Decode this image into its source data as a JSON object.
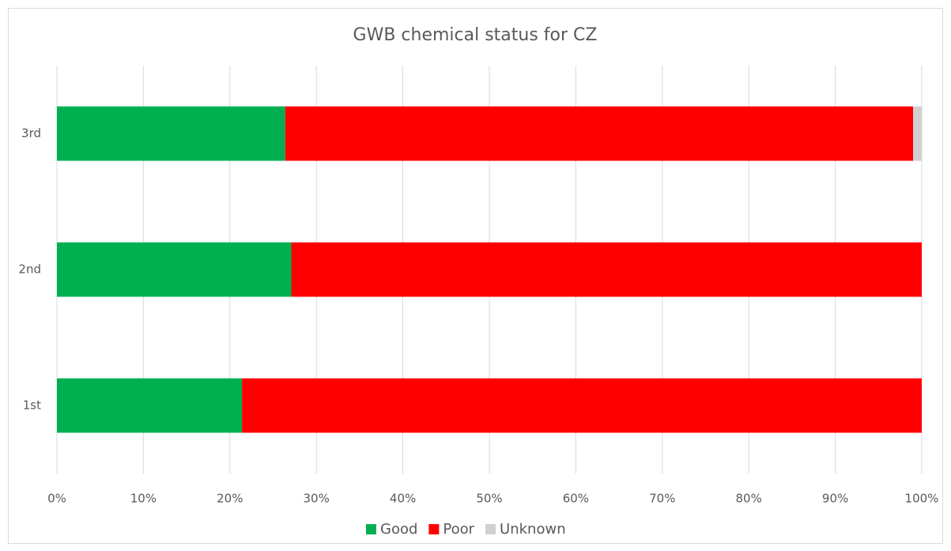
{
  "chart_data": {
    "type": "bar",
    "orientation": "horizontal",
    "stacked": true,
    "title": "GWB chemical status for CZ",
    "categories": [
      "1st",
      "2nd",
      "3rd"
    ],
    "series": [
      {
        "name": "Good",
        "color": "#00b050",
        "values": [
          21.4,
          27.1,
          26.4
        ]
      },
      {
        "name": "Poor",
        "color": "#ff0000",
        "values": [
          78.6,
          72.9,
          72.6
        ]
      },
      {
        "name": "Unknown",
        "color": "#d0d0d0",
        "values": [
          0,
          0,
          1.0
        ]
      }
    ],
    "xlim": [
      0,
      100
    ],
    "xticks": [
      {
        "value": 0,
        "label": "0%"
      },
      {
        "value": 10,
        "label": "10%"
      },
      {
        "value": 20,
        "label": "20%"
      },
      {
        "value": 30,
        "label": "30%"
      },
      {
        "value": 40,
        "label": "40%"
      },
      {
        "value": 50,
        "label": "50%"
      },
      {
        "value": 60,
        "label": "60%"
      },
      {
        "value": 70,
        "label": "70%"
      },
      {
        "value": 80,
        "label": "80%"
      },
      {
        "value": 90,
        "label": "90%"
      },
      {
        "value": 100,
        "label": "100%"
      }
    ],
    "grid": true,
    "legend": "bottom"
  }
}
